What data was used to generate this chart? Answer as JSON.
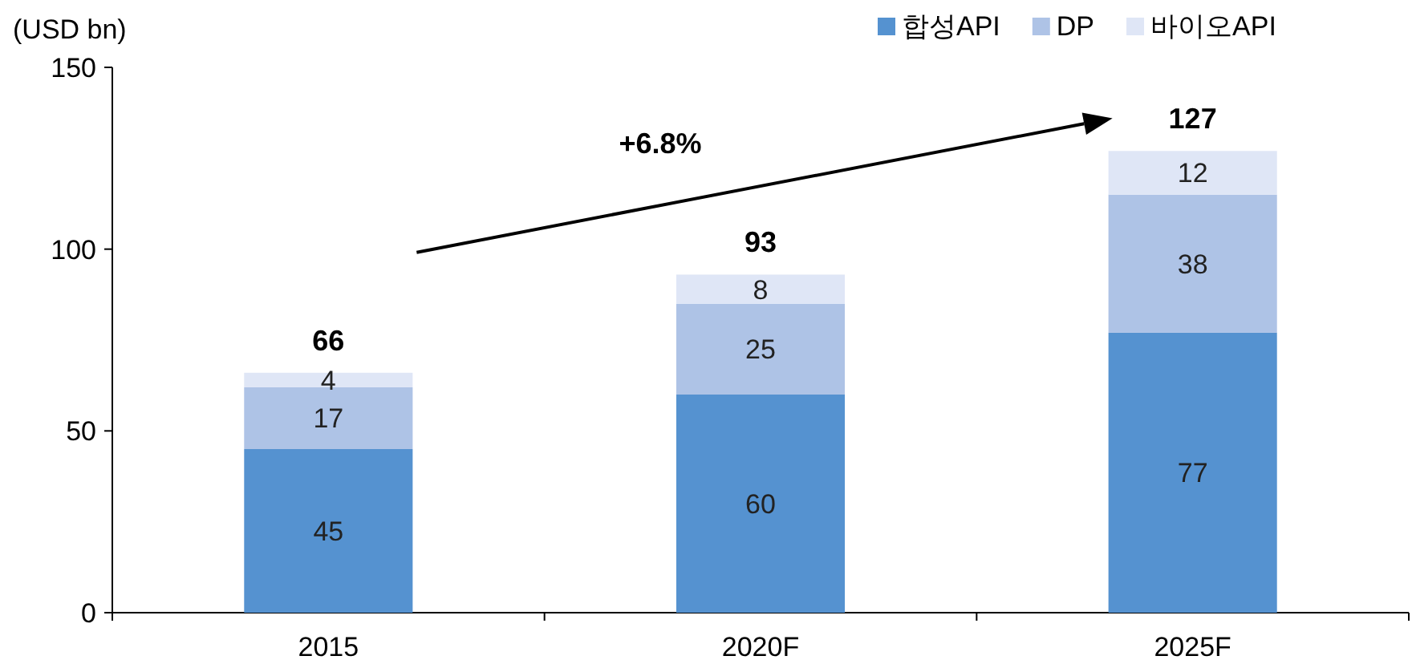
{
  "chart_data": {
    "type": "bar",
    "ylabel": "(USD bn)",
    "categories": [
      "2015",
      "2020F",
      "2025F"
    ],
    "series": [
      {
        "name": "합성API",
        "color": "#5592d0",
        "values": [
          45,
          60,
          77
        ]
      },
      {
        "name": "DP",
        "color": "#aec3e6",
        "values": [
          17,
          25,
          38
        ]
      },
      {
        "name": "바이오API",
        "color": "#dfe6f6",
        "values": [
          4,
          8,
          12
        ]
      }
    ],
    "stacked": true,
    "ylim": [
      0,
      150
    ],
    "yticks": [
      0,
      50,
      100,
      150
    ],
    "data_labels": true,
    "totals": [
      "66",
      "93",
      "127"
    ],
    "legend": "top right",
    "annotations": [
      "+6.8%"
    ]
  }
}
